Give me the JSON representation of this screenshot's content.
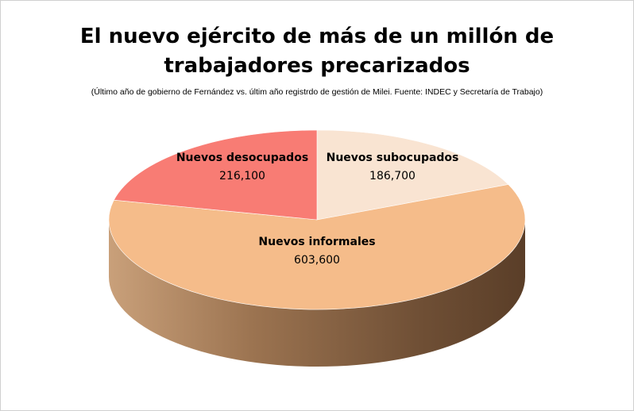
{
  "chart_data": {
    "type": "pie",
    "title_line1": "El nuevo ejército de más de un millón de",
    "title_line2": "trabajadores precarizados",
    "subtitle": "(Último año de gobierno de Fernández vs. últim año registrdo de gestión de Milei. Fuente: INDEC y Secretaría de Trabajo)",
    "categories": [
      "Nuevos subocupados",
      "Nuevos informales",
      "Nuevos desocupados"
    ],
    "values": [
      186700,
      603600,
      216100
    ],
    "value_labels": [
      "186,700",
      "603,600",
      "216,100"
    ],
    "colors": [
      "#f9e4d2",
      "#f5bc8a",
      "#f87c74"
    ],
    "side_colors": [
      "#e8d2bd",
      "#a8805a",
      "#c8605a"
    ],
    "legend": "none",
    "style": "3d-tilted"
  }
}
